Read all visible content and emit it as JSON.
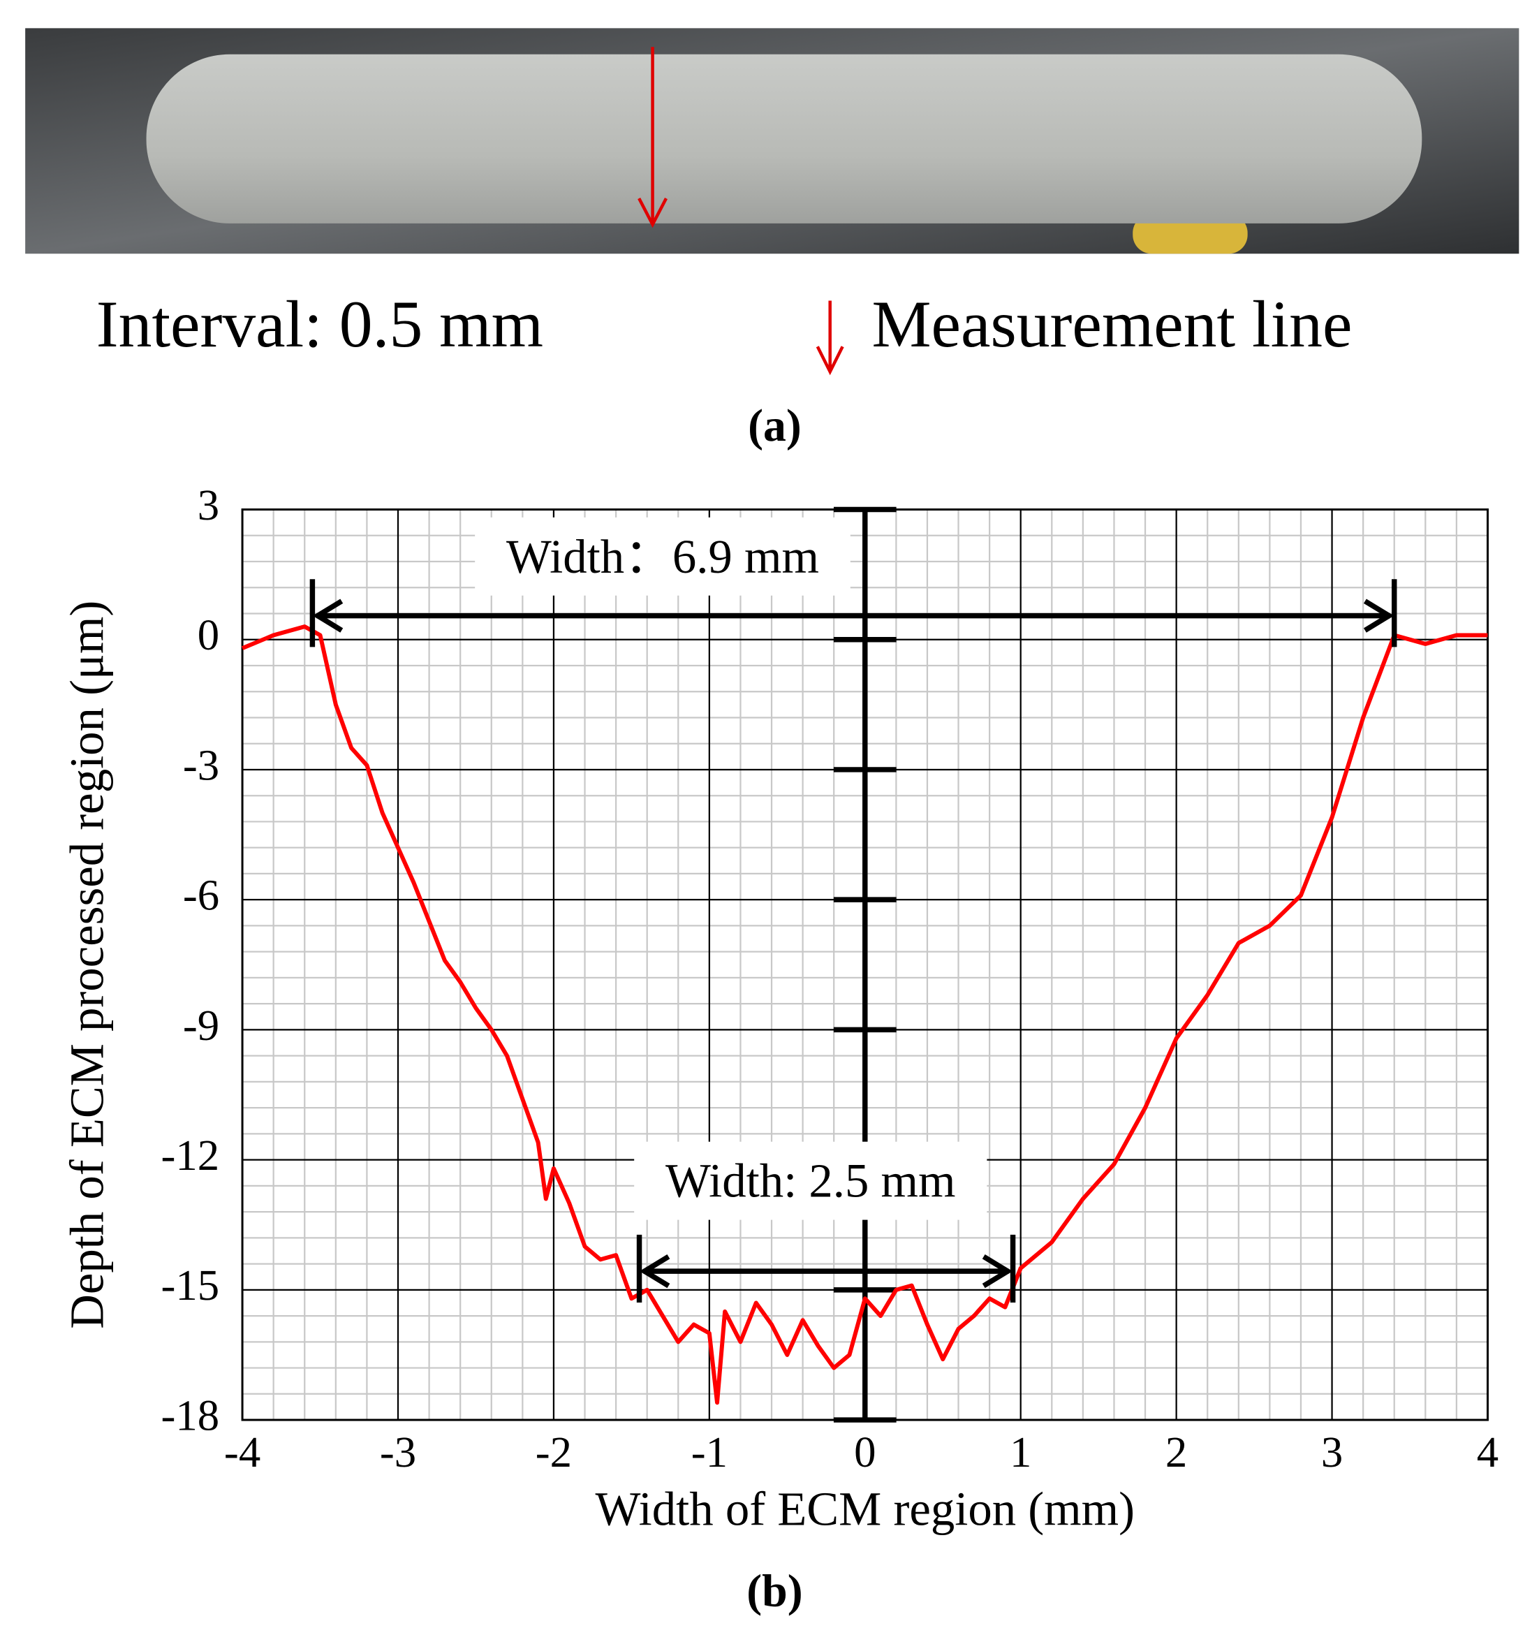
{
  "panel_a": {
    "labels": [
      "Interval: 0.5 mm",
      "Measurement line"
    ],
    "caption": "(a)"
  },
  "chart_data": {
    "type": "line",
    "caption": "(b)",
    "x_label": "Width of ECM region (mm)",
    "y_label": "Depth of ECM processed region (μm)",
    "color": "#ff0000",
    "x": [
      -4,
      -3.8,
      -3.6,
      -3.5,
      -3.4,
      -3.3,
      -3.2,
      -3.1,
      -3.0,
      -2.9,
      -2.8,
      -2.7,
      -2.6,
      -2.5,
      -2.4,
      -2.3,
      -2.2,
      -2.1,
      -2.05,
      -2.0,
      -1.9,
      -1.8,
      -1.7,
      -1.6,
      -1.5,
      -1.4,
      -1.3,
      -1.2,
      -1.1,
      -1.0,
      -0.95,
      -0.9,
      -0.8,
      -0.7,
      -0.6,
      -0.5,
      -0.4,
      -0.3,
      -0.2,
      -0.1,
      0,
      0.1,
      0.2,
      0.3,
      0.4,
      0.5,
      0.6,
      0.7,
      0.8,
      0.9,
      1.0,
      1.2,
      1.4,
      1.6,
      1.8,
      2.0,
      2.2,
      2.4,
      2.6,
      2.8,
      3.0,
      3.2,
      3.4,
      3.6,
      3.8,
      4.0
    ],
    "values": [
      -0.2,
      0.1,
      0.3,
      0.1,
      -1.5,
      -2.5,
      -2.9,
      -4,
      -4.8,
      -5.6,
      -6.5,
      -7.4,
      -7.9,
      -8.5,
      -9.0,
      -9.6,
      -10.6,
      -11.6,
      -12.9,
      -12.2,
      -13.0,
      -14.0,
      -14.3,
      -14.2,
      -15.2,
      -15.0,
      -15.6,
      -16.2,
      -15.8,
      -16.0,
      -17.6,
      -15.5,
      -16.2,
      -15.3,
      -15.8,
      -16.5,
      -15.7,
      -16.3,
      -16.8,
      -16.5,
      -15.2,
      -15.6,
      -15.0,
      -14.9,
      -15.8,
      -16.6,
      -15.9,
      -15.6,
      -15.2,
      -15.4,
      -14.5,
      -13.9,
      -12.9,
      -12.1,
      -10.8,
      -9.2,
      -8.2,
      -7.0,
      -6.6,
      -5.9,
      -4.1,
      -1.8,
      0.1,
      -0.1,
      0.1,
      0.1
    ],
    "xlim": [
      -4,
      4
    ],
    "ylim": [
      -18,
      3
    ],
    "xticks": [
      -4,
      -3,
      -2,
      -1,
      0,
      1,
      2,
      3,
      4
    ],
    "yticks": [
      -18,
      -15,
      -12,
      -9,
      -6,
      -3,
      0,
      3
    ],
    "grid": true,
    "annotations": [
      {
        "text": "Width：6.9 mm",
        "x_start": -3.55,
        "x_end": 3.4,
        "y": 0.55,
        "text_x": -1.3,
        "text_y": 1.8
      },
      {
        "text": "Width: 2.5 mm",
        "x_start": -1.45,
        "x_end": 0.95,
        "y": -14.57,
        "text_x": -0.35,
        "text_y": -12.6
      }
    ]
  }
}
